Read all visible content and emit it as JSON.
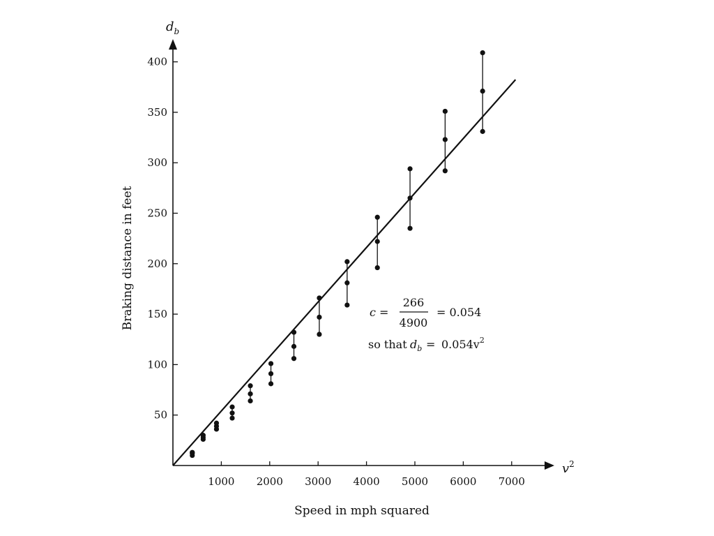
{
  "chart_data": {
    "type": "scatter",
    "title": "",
    "xlabel": "Speed in mph squared",
    "ylabel": "Braking distance in feet",
    "x_axis_symbol": "v",
    "x_axis_symbol_sup": "2",
    "y_axis_symbol": "d",
    "y_axis_symbol_sub": "b",
    "xlim": [
      0,
      7800
    ],
    "ylim": [
      0,
      430
    ],
    "x_ticks": [
      "1000",
      "2000",
      "3000",
      "4000",
      "5000",
      "6000",
      "7000"
    ],
    "y_ticks": [
      "50",
      "100",
      "150",
      "200",
      "250",
      "300",
      "350",
      "400"
    ],
    "grid": false,
    "groups": [
      {
        "x": 400,
        "y": [
          10,
          12,
          13
        ]
      },
      {
        "x": 625,
        "y": [
          26,
          28,
          30
        ]
      },
      {
        "x": 900,
        "y": [
          36,
          39,
          42
        ]
      },
      {
        "x": 1225,
        "y": [
          47,
          52,
          58
        ]
      },
      {
        "x": 1600,
        "y": [
          64,
          71,
          79
        ]
      },
      {
        "x": 2025,
        "y": [
          81,
          91,
          101
        ]
      },
      {
        "x": 2500,
        "y": [
          106,
          118,
          132
        ]
      },
      {
        "x": 3025,
        "y": [
          130,
          147,
          166
        ]
      },
      {
        "x": 3600,
        "y": [
          159,
          181,
          202
        ]
      },
      {
        "x": 4225,
        "y": [
          196,
          222,
          246
        ]
      },
      {
        "x": 4900,
        "y": [
          235,
          265,
          294
        ]
      },
      {
        "x": 5625,
        "y": [
          292,
          323,
          351
        ]
      },
      {
        "x": 6400,
        "y": [
          331,
          371,
          409
        ]
      }
    ],
    "fit_line": {
      "slope": 0.054,
      "x_start": 0,
      "x_end": 7080
    },
    "annotation": {
      "line1_prefix": "c =",
      "fraction_numerator": "266",
      "fraction_denominator": "4900",
      "line1_suffix": "= 0.054",
      "line2_text": "so that",
      "line2_symbol": "d",
      "line2_symbol_sub": "b",
      "line2_eq": "=",
      "line2_value": "0.054v",
      "line2_value_sup": "2"
    }
  }
}
